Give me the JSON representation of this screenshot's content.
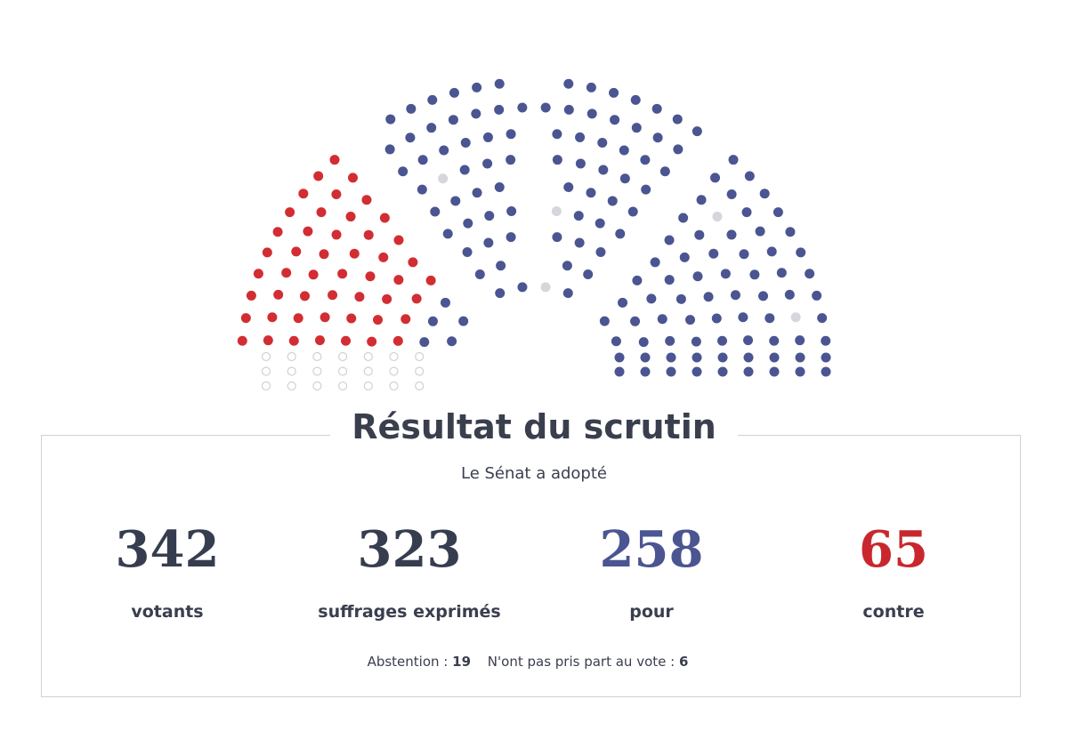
{
  "header": {
    "title": "Résultat du scrutin",
    "subtitle": "Le Sénat a adopté"
  },
  "stats": [
    {
      "value": 342,
      "label": "votants"
    },
    {
      "value": 323,
      "label": "suffrages exprimés"
    },
    {
      "value": 258,
      "label": "pour"
    },
    {
      "value": 65,
      "label": "contre"
    }
  ],
  "footer": [
    {
      "label": "Abstention :",
      "value": 19
    },
    {
      "label": "N'ont pas pris part au vote :",
      "value": 6
    }
  ]
}
